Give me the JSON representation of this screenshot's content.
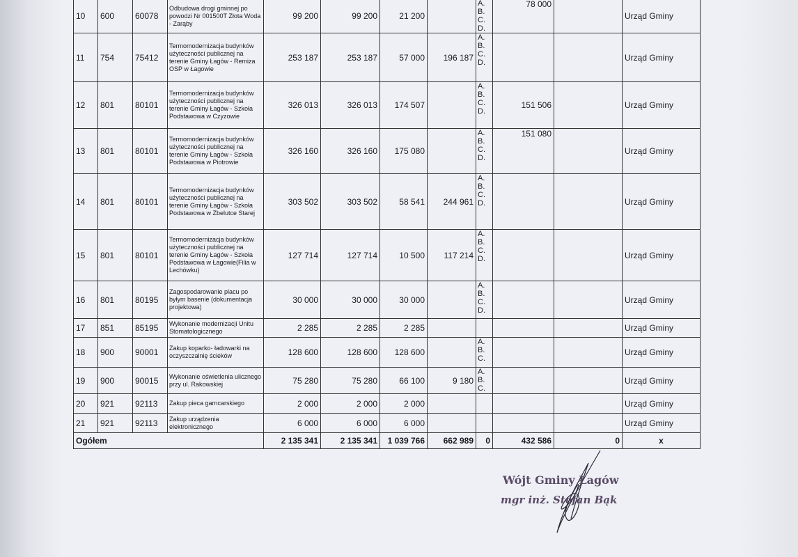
{
  "rows": [
    {
      "lp": "10",
      "dzial": "600",
      "rozdzial": "60078",
      "name": "Odbudowa drogi gminnej po powodzi Nr 001500T Złota Woda - Zarąby",
      "c1": "99 200",
      "c2": "99 200",
      "c3": "21 200",
      "c4": "",
      "letters": "A.\nB.\nC.\nD.",
      "c6": "78 000",
      "c6_top": true,
      "c7": "",
      "unit": "Urząd Gminy"
    },
    {
      "lp": "11",
      "dzial": "754",
      "rozdzial": "75412",
      "name": "Termomodernizacja budynków użyteczności publicznej na terenie Gminy Łagów - Remiza OSP w Łagowie",
      "c1": "253 187",
      "c2": "253 187",
      "c3": "57 000",
      "c4": "196 187",
      "letters": "A.\nB.\nC.\nD.",
      "c6": "",
      "c7": "",
      "unit": "Urząd Gminy"
    },
    {
      "lp": "12",
      "dzial": "801",
      "rozdzial": "80101",
      "name": "Termomodernizacja budynków użyteczności publicznej na terenie Gminy Łagów - Szkoła Podstawowa w Czyzowie",
      "c1": "326 013",
      "c2": "326 013",
      "c3": "174 507",
      "c4": "",
      "letters": "A.\nB.\nC.\nD.",
      "c6": "151 506",
      "c7": "",
      "unit": "Urząd Gminy"
    },
    {
      "lp": "13",
      "dzial": "801",
      "rozdzial": "80101",
      "name": "Termomodernizacja budynków użyteczności publicznej na terenie Gminy Łagów - Szkoła Podstawowa w Piotrowie",
      "c1": "326 160",
      "c2": "326 160",
      "c3": "175 080",
      "c4": "",
      "letters": "A.\nB.\nC.\nD.",
      "c6": "151 080",
      "c6_top": true,
      "c7": "",
      "unit": "Urząd Gminy"
    },
    {
      "lp": "14",
      "dzial": "801",
      "rozdzial": "80101",
      "name": "Termomodernizacja budynków użyteczności publicznej na terenie Gminy Łagów - Szkoła Podstawowa w Zbelutce Starej",
      "c1": "303 502",
      "c2": "303 502",
      "c3": "58 541",
      "c4": "244 961",
      "letters": "A.\nB.\nC.\nD.",
      "c6": "",
      "c7": "",
      "unit": "Urząd Gminy"
    },
    {
      "lp": "15",
      "dzial": "801",
      "rozdzial": "80101",
      "name": "Termomodernizacja budynków użyteczności publicznej na terenie Gminy Łagów - Szkoła Podstawowa w Łagowie(Filia w Lechówku)",
      "c1": "127 714",
      "c2": "127 714",
      "c3": "10 500",
      "c4": "117 214",
      "letters": "A.\nB.\nC.\nD.",
      "c6": "",
      "c7": "",
      "unit": "Urząd Gminy"
    },
    {
      "lp": "16",
      "dzial": "801",
      "rozdzial": "80195",
      "name": "Zagospodarowanie placu po byłym basenie (dokumentacja projektowa)",
      "c1": "30 000",
      "c2": "30 000",
      "c3": "30 000",
      "c4": "",
      "letters": "A.\nB.\nC.\nD.",
      "c6": "",
      "c7": "",
      "unit": "Urząd Gminy"
    },
    {
      "lp": "17",
      "dzial": "851",
      "rozdzial": "85195",
      "name": "Wykonanie modernizacji Unitu Stomatologicznego",
      "c1": "2 285",
      "c2": "2 285",
      "c3": "2 285",
      "c4": "",
      "letters": "",
      "c6": "",
      "c7": "",
      "unit": "Urząd Gminy"
    },
    {
      "lp": "18",
      "dzial": "900",
      "rozdzial": "90001",
      "name": "Zakup koparko- ładowarki na oczyszczalnię ścieków",
      "c1": "128 600",
      "c2": "128 600",
      "c3": "128 600",
      "c4": "",
      "letters": "A.\nB.\nC.",
      "c6": "",
      "c7": "",
      "unit": "Urząd Gminy"
    },
    {
      "lp": "19",
      "dzial": "900",
      "rozdzial": "90015",
      "name": "Wykonanie oświetlenia ulicznego przy ul. Rakowskiej",
      "c1": "75 280",
      "c2": "75 280",
      "c3": "66 100",
      "c4": "9 180",
      "letters": "A.\nB.\nC.",
      "c6": "",
      "c7": "",
      "unit": "Urząd Gminy"
    },
    {
      "lp": "20",
      "dzial": "921",
      "rozdzial": "92113",
      "name": "Zakup pieca garncarskiego",
      "c1": "2 000",
      "c2": "2 000",
      "c3": "2 000",
      "c4": "",
      "letters": "",
      "c6": "",
      "c7": "",
      "unit": "Urząd Gminy"
    },
    {
      "lp": "21",
      "dzial": "921",
      "rozdzial": "92113",
      "name": "Zakup urządzenia elektronicznego",
      "c1": "6 000",
      "c2": "6 000",
      "c3": "6 000",
      "c4": "",
      "letters": "",
      "c6": "",
      "c7": "",
      "unit": "Urząd Gminy"
    }
  ],
  "total": {
    "label": "Ogółem",
    "c1": "2 135 341",
    "c2": "2 135 341",
    "c3": "1 039 766",
    "c4": "662 989",
    "c5": "0",
    "c6": "432 586",
    "c7": "0",
    "unit": "x"
  },
  "signature": {
    "title": "Wójt Gminy Łagów",
    "name": "mgr inż. Stefan Bąk"
  }
}
